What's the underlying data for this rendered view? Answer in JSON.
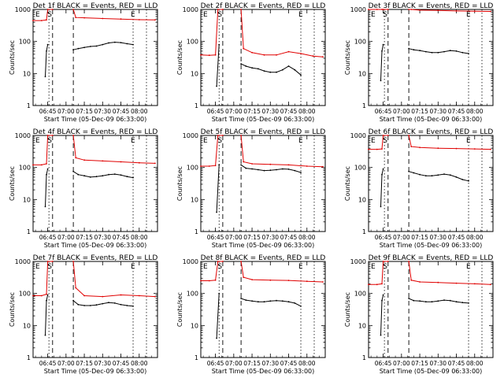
{
  "figure": {
    "ylabel": "Counts/sec",
    "xlabel": "Start Time (05-Dec-09 06:33:00)",
    "legend_text": "BLACK = Events, RED = LLD",
    "x_tick_labels": [
      "06:45",
      "07:00",
      "07:15",
      "07:30",
      "07:45",
      "08:00"
    ],
    "y_tick_labels": [
      "1",
      "10",
      "100",
      "1000"
    ],
    "markers": {
      "s": "S",
      "e": "E"
    },
    "colors": {
      "events": "#000000",
      "lld": "#e00000",
      "axes": "#000000"
    }
  },
  "chart_data": [
    {
      "type": "line",
      "title": "Det 1f BLACK = Events, RED = LLD",
      "detector": "Det 1f",
      "xlim": [
        "06:33",
        "08:15"
      ],
      "ylim": [
        1,
        1000
      ],
      "yscale": "log",
      "s_time": "06:46",
      "e_time": "07:55",
      "gap": [
        "06:49",
        "07:06"
      ],
      "series": [
        {
          "name": "Events",
          "color": "#000000",
          "x": [
            "06:43",
            "06:44",
            "06:45",
            "07:06",
            "07:10",
            "07:15",
            "07:20",
            "07:25",
            "07:30",
            "07:35",
            "07:40",
            "07:45",
            "07:50",
            "07:55"
          ],
          "y": [
            8,
            50,
            80,
            55,
            60,
            65,
            70,
            72,
            80,
            90,
            95,
            92,
            85,
            80
          ]
        },
        {
          "name": "LLD",
          "color": "#e00000",
          "x": [
            "06:33",
            "06:40",
            "06:44",
            "06:45",
            "06:49",
            "07:06",
            "07:08",
            "07:15",
            "07:30",
            "07:45",
            "08:00",
            "08:13"
          ],
          "y": [
            450,
            450,
            470,
            1000,
            1000,
            1000,
            560,
            550,
            520,
            500,
            480,
            470
          ]
        }
      ]
    },
    {
      "type": "line",
      "title": "Det 2f BLACK = Events, RED = LLD",
      "detector": "Det 2f",
      "xlim": [
        "06:33",
        "08:15"
      ],
      "ylim": [
        1,
        1000
      ],
      "yscale": "log",
      "s_time": "06:48",
      "e_time": "07:55",
      "gap": [
        "06:51",
        "07:06"
      ],
      "series": [
        {
          "name": "Events",
          "color": "#000000",
          "x": [
            "06:46",
            "06:48",
            "07:06",
            "07:10",
            "07:15",
            "07:20",
            "07:25",
            "07:30",
            "07:35",
            "07:40",
            "07:45",
            "07:50",
            "07:55"
          ],
          "y": [
            4,
            80,
            20,
            17,
            15,
            14,
            12,
            11,
            11,
            13,
            17,
            13,
            9
          ]
        },
        {
          "name": "LLD",
          "color": "#e00000",
          "x": [
            "06:33",
            "06:40",
            "06:45",
            "06:47",
            "06:51",
            "07:06",
            "07:08",
            "07:15",
            "07:25",
            "07:35",
            "07:45",
            "07:55",
            "08:05",
            "08:13"
          ],
          "y": [
            38,
            37,
            38,
            1000,
            1000,
            1000,
            60,
            45,
            38,
            38,
            48,
            42,
            35,
            33
          ]
        }
      ]
    },
    {
      "type": "line",
      "title": "Det 3f BLACK = Events, RED = LLD",
      "detector": "Det 3f",
      "xlim": [
        "06:33",
        "08:15"
      ],
      "ylim": [
        1,
        1000
      ],
      "yscale": "log",
      "s_time": "06:46",
      "e_time": "07:55",
      "gap": [
        "06:49",
        "07:06"
      ],
      "series": [
        {
          "name": "Events",
          "color": "#000000",
          "x": [
            "06:43",
            "06:44",
            "06:45",
            "07:06",
            "07:10",
            "07:15",
            "07:20",
            "07:25",
            "07:30",
            "07:35",
            "07:40",
            "07:45",
            "07:50",
            "07:55"
          ],
          "y": [
            6,
            50,
            80,
            60,
            55,
            52,
            48,
            45,
            45,
            48,
            52,
            50,
            45,
            42
          ]
        },
        {
          "name": "LLD",
          "color": "#e00000",
          "x": [
            "06:33",
            "06:40",
            "06:44",
            "06:45",
            "06:49",
            "07:06",
            "07:08",
            "07:15",
            "07:30",
            "07:45",
            "08:00",
            "08:13"
          ],
          "y": [
            1000,
            1000,
            1000,
            1000,
            1000,
            1000,
            1000,
            950,
            930,
            900,
            880,
            870
          ]
        }
      ]
    },
    {
      "type": "line",
      "title": "Det 4f BLACK = Events, RED = LLD",
      "detector": "Det 4f",
      "xlim": [
        "06:33",
        "08:15"
      ],
      "ylim": [
        1,
        1000
      ],
      "yscale": "log",
      "s_time": "06:46",
      "e_time": "07:55",
      "gap": [
        "06:49",
        "07:06"
      ],
      "series": [
        {
          "name": "Events",
          "color": "#000000",
          "x": [
            "06:43",
            "06:44",
            "06:45",
            "07:06",
            "07:10",
            "07:15",
            "07:20",
            "07:25",
            "07:30",
            "07:35",
            "07:40",
            "07:45",
            "07:50",
            "07:55"
          ],
          "y": [
            6,
            60,
            90,
            75,
            60,
            55,
            50,
            52,
            55,
            60,
            62,
            58,
            52,
            48
          ]
        },
        {
          "name": "LLD",
          "color": "#e00000",
          "x": [
            "06:33",
            "06:40",
            "06:44",
            "06:45",
            "06:49",
            "07:06",
            "07:08",
            "07:15",
            "07:30",
            "07:45",
            "08:00",
            "08:13"
          ],
          "y": [
            120,
            120,
            130,
            1000,
            1000,
            1000,
            200,
            170,
            160,
            150,
            140,
            135
          ]
        }
      ]
    },
    {
      "type": "line",
      "title": "Det 5f BLACK = Events, RED = LLD",
      "detector": "Det 5f",
      "xlim": [
        "06:33",
        "08:15"
      ],
      "ylim": [
        1,
        1000
      ],
      "yscale": "log",
      "s_time": "06:48",
      "e_time": "07:55",
      "gap": [
        "06:51",
        "07:06"
      ],
      "series": [
        {
          "name": "Events",
          "color": "#000000",
          "x": [
            "06:46",
            "06:48",
            "07:06",
            "07:10",
            "07:15",
            "07:20",
            "07:25",
            "07:30",
            "07:35",
            "07:40",
            "07:45",
            "07:50",
            "07:55"
          ],
          "y": [
            4,
            120,
            120,
            95,
            90,
            85,
            80,
            82,
            85,
            90,
            88,
            80,
            70
          ]
        },
        {
          "name": "LLD",
          "color": "#e00000",
          "x": [
            "06:33",
            "06:40",
            "06:45",
            "06:47",
            "06:51",
            "07:06",
            "07:08",
            "07:15",
            "07:30",
            "07:45",
            "08:00",
            "08:13"
          ],
          "y": [
            110,
            110,
            115,
            1000,
            1000,
            1000,
            150,
            130,
            125,
            120,
            110,
            105
          ]
        }
      ]
    },
    {
      "type": "line",
      "title": "Det 6f BLACK = Events, RED = LLD",
      "detector": "Det 6f",
      "xlim": [
        "06:33",
        "08:15"
      ],
      "ylim": [
        1,
        1000
      ],
      "yscale": "log",
      "s_time": "06:46",
      "e_time": "07:55",
      "gap": [
        "06:49",
        "07:06"
      ],
      "series": [
        {
          "name": "Events",
          "color": "#000000",
          "x": [
            "06:43",
            "06:44",
            "06:45",
            "07:06",
            "07:10",
            "07:15",
            "07:20",
            "07:25",
            "07:30",
            "07:35",
            "07:40",
            "07:45",
            "07:50",
            "07:55"
          ],
          "y": [
            6,
            60,
            90,
            75,
            68,
            60,
            55,
            55,
            58,
            62,
            58,
            50,
            42,
            38
          ]
        },
        {
          "name": "LLD",
          "color": "#e00000",
          "x": [
            "06:33",
            "06:40",
            "06:44",
            "06:45",
            "06:49",
            "07:06",
            "07:08",
            "07:15",
            "07:30",
            "07:45",
            "08:00",
            "08:13"
          ],
          "y": [
            370,
            370,
            380,
            1000,
            1000,
            1000,
            450,
            420,
            400,
            390,
            380,
            370
          ]
        }
      ]
    },
    {
      "type": "line",
      "title": "Det 7f BLACK = Events, RED = LLD",
      "detector": "Det 7f",
      "xlim": [
        "06:33",
        "08:15"
      ],
      "ylim": [
        1,
        1000
      ],
      "yscale": "log",
      "s_time": "06:46",
      "e_time": "07:55",
      "gap": [
        "06:49",
        "07:06"
      ],
      "series": [
        {
          "name": "Events",
          "color": "#000000",
          "x": [
            "06:43",
            "06:44",
            "06:45",
            "07:06",
            "07:10",
            "07:15",
            "07:20",
            "07:25",
            "07:30",
            "07:35",
            "07:40",
            "07:45",
            "07:50",
            "07:55"
          ],
          "y": [
            5,
            60,
            90,
            60,
            45,
            42,
            42,
            44,
            48,
            52,
            50,
            45,
            42,
            40
          ]
        },
        {
          "name": "LLD",
          "color": "#e00000",
          "x": [
            "06:33",
            "06:40",
            "06:44",
            "06:45",
            "06:49",
            "07:06",
            "07:08",
            "07:15",
            "07:30",
            "07:45",
            "08:00",
            "08:13"
          ],
          "y": [
            85,
            85,
            95,
            1000,
            1000,
            1000,
            150,
            85,
            80,
            90,
            85,
            80
          ]
        }
      ]
    },
    {
      "type": "line",
      "title": "Det 8f BLACK = Events, RED = LLD",
      "detector": "Det 8f",
      "xlim": [
        "06:33",
        "08:15"
      ],
      "ylim": [
        1,
        1000
      ],
      "yscale": "log",
      "s_time": "06:48",
      "e_time": "07:55",
      "gap": [
        "06:51",
        "07:06"
      ],
      "series": [
        {
          "name": "Events",
          "color": "#000000",
          "x": [
            "06:46",
            "06:48",
            "07:06",
            "07:10",
            "07:15",
            "07:20",
            "07:25",
            "07:30",
            "07:35",
            "07:40",
            "07:45",
            "07:50",
            "07:55"
          ],
          "y": [
            4,
            100,
            70,
            62,
            58,
            55,
            55,
            58,
            60,
            58,
            55,
            50,
            40
          ]
        },
        {
          "name": "LLD",
          "color": "#e00000",
          "x": [
            "06:33",
            "06:40",
            "06:45",
            "06:47",
            "06:51",
            "07:06",
            "07:08",
            "07:15",
            "07:30",
            "07:45",
            "08:00",
            "08:13"
          ],
          "y": [
            250,
            250,
            260,
            1000,
            1000,
            1000,
            320,
            270,
            260,
            255,
            240,
            230
          ]
        }
      ]
    },
    {
      "type": "line",
      "title": "Det 9f BLACK = Events, RED = LLD",
      "detector": "Det 9f",
      "xlim": [
        "06:33",
        "08:15"
      ],
      "ylim": [
        1,
        1000
      ],
      "yscale": "log",
      "s_time": "06:46",
      "e_time": "07:55",
      "gap": [
        "06:49",
        "07:06"
      ],
      "series": [
        {
          "name": "Events",
          "color": "#000000",
          "x": [
            "06:43",
            "06:44",
            "06:45",
            "07:06",
            "07:10",
            "07:15",
            "07:20",
            "07:25",
            "07:30",
            "07:35",
            "07:40",
            "07:45",
            "07:50",
            "07:55"
          ],
          "y": [
            5,
            60,
            90,
            70,
            60,
            58,
            55,
            55,
            58,
            62,
            60,
            55,
            52,
            50
          ]
        },
        {
          "name": "LLD",
          "color": "#e00000",
          "x": [
            "06:33",
            "06:40",
            "06:44",
            "06:45",
            "06:49",
            "07:06",
            "07:08",
            "07:15",
            "07:30",
            "07:45",
            "08:00",
            "08:13"
          ],
          "y": [
            190,
            190,
            200,
            1000,
            1000,
            1000,
            260,
            230,
            220,
            210,
            200,
            190
          ]
        }
      ]
    }
  ]
}
